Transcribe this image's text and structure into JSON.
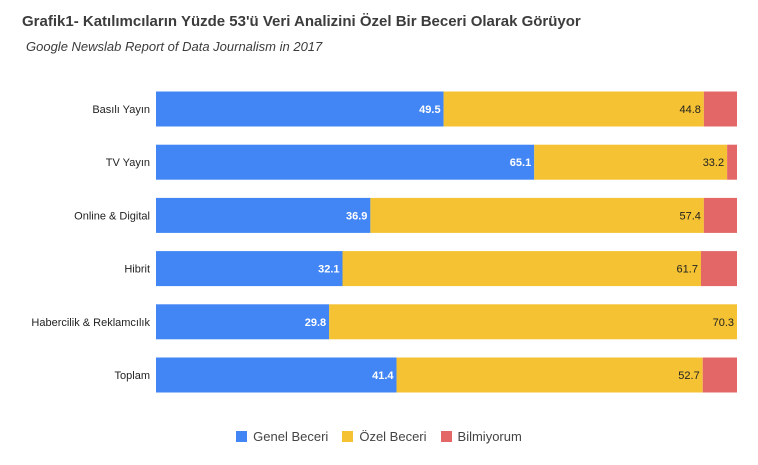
{
  "title": "Grafik1- Katılımcıların Yüzde 53'ü Veri Analizini Özel Bir Beceri Olarak Görüyor",
  "subtitle": "Google Newslab Report of Data Journalism in 2017",
  "chart_data": {
    "type": "bar",
    "orientation": "horizontal",
    "stacked": "percent",
    "categories": [
      "Basılı Yayın",
      "TV Yayın",
      "Online & Digital",
      "Hibrit",
      "Habercilik & Reklamcılık",
      "Toplam"
    ],
    "series": [
      {
        "name": "Genel Beceri",
        "color": "#4285f4",
        "label_color": "#ffffff",
        "values": [
          49.5,
          65.1,
          36.9,
          32.1,
          29.8,
          41.4
        ]
      },
      {
        "name": "Özel Beceri",
        "color": "#f4c232",
        "label_color": "#222222",
        "values": [
          44.8,
          33.2,
          57.4,
          61.7,
          70.3,
          52.7
        ]
      },
      {
        "name": "Bilmiyorum",
        "color": "#e46767",
        "values": [
          5.7,
          1.7,
          5.7,
          6.2,
          0,
          5.9
        ]
      }
    ],
    "xlim": [
      0,
      100
    ],
    "legend_position": "bottom",
    "grid": false
  }
}
